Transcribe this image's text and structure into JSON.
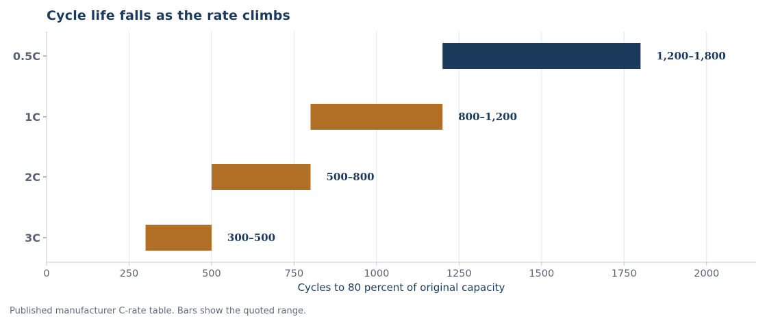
{
  "chart_data": {
    "type": "bar",
    "orientation": "horizontal",
    "title": "Cycle life falls as the rate climbs",
    "xlabel": "Cycles to 80 percent of original capacity",
    "ylabel": "",
    "xlim": [
      0,
      2150
    ],
    "x_ticks": [
      "0",
      "250",
      "500",
      "750",
      "1000",
      "1250",
      "1500",
      "1750",
      "2000"
    ],
    "x_tick_values": [
      0,
      250,
      500,
      750,
      1000,
      1250,
      1500,
      1750,
      2000
    ],
    "grid": true,
    "categories": [
      "0.5C",
      "1C",
      "2C",
      "3C"
    ],
    "ranges": [
      {
        "category": "0.5C",
        "start": 1200,
        "end": 1800,
        "label": "1,200–1,800",
        "color": "#1b3a5c"
      },
      {
        "category": "1C",
        "start": 800,
        "end": 1200,
        "label": "800–1,200",
        "color": "#b06f24"
      },
      {
        "category": "2C",
        "start": 500,
        "end": 800,
        "label": "500–800",
        "color": "#b06f24"
      },
      {
        "category": "3C",
        "start": 300,
        "end": 500,
        "label": "300–500",
        "color": "#b06f24"
      }
    ],
    "note": "Published manufacturer C-rate table. Bars show the quoted range."
  },
  "colors": {
    "highlight": "#1b3a5c",
    "bar": "#b06f24",
    "grid": "#e2e4e8",
    "axis": "#c4c8ce"
  }
}
